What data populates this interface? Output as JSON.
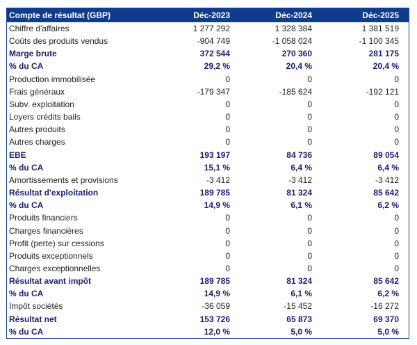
{
  "header": {
    "title": "Compte de résultat (GBP)",
    "columns": [
      "Déc-2023",
      "Déc-2024",
      "Déc-2025"
    ]
  },
  "rows": [
    {
      "label": "Chiffre d'affaires",
      "values": [
        "1 277 292",
        "1 328 384",
        "1 381 519"
      ],
      "bold": false
    },
    {
      "label": "Coûts des produits vendus",
      "values": [
        "-904 749",
        "-1 058 024",
        "-1 100 345"
      ],
      "bold": false
    },
    {
      "label": "Marge brute",
      "values": [
        "372 544",
        "270 360",
        "281 175"
      ],
      "bold": true
    },
    {
      "label": "% du CA",
      "values": [
        "29,2 %",
        "20,4 %",
        "20,4 %"
      ],
      "bold": true
    },
    {
      "label": "Production immobilisée",
      "values": [
        "0",
        "0",
        "0"
      ],
      "bold": false
    },
    {
      "label": "Frais généraux",
      "values": [
        "-179 347",
        "-185 624",
        "-192 121"
      ],
      "bold": false
    },
    {
      "label": "Subv. exploitation",
      "values": [
        "0",
        "0",
        "0"
      ],
      "bold": false
    },
    {
      "label": "Loyers crédits bails",
      "values": [
        "0",
        "0",
        "0"
      ],
      "bold": false
    },
    {
      "label": "Autres produits",
      "values": [
        "0",
        "0",
        "0"
      ],
      "bold": false
    },
    {
      "label": "Autres charges",
      "values": [
        "0",
        "0",
        "0"
      ],
      "bold": false
    },
    {
      "label": "EBE",
      "values": [
        "193 197",
        "84 736",
        "89 054"
      ],
      "bold": true
    },
    {
      "label": "% du CA",
      "values": [
        "15,1 %",
        "6,4 %",
        "6,4 %"
      ],
      "bold": true
    },
    {
      "label": "Amortissements et provisions",
      "values": [
        "-3 412",
        "-3 412",
        "-3 412"
      ],
      "bold": false
    },
    {
      "label": "Résultat d'exploitation",
      "values": [
        "189 785",
        "81 324",
        "85 642"
      ],
      "bold": true
    },
    {
      "label": "% du CA",
      "values": [
        "14,9 %",
        "6,1 %",
        "6,2 %"
      ],
      "bold": true
    },
    {
      "label": "Produits financiers",
      "values": [
        "0",
        "0",
        "0"
      ],
      "bold": false
    },
    {
      "label": "Charges financières",
      "values": [
        "0",
        "0",
        "0"
      ],
      "bold": false
    },
    {
      "label": "Profit (perte) sur cessions",
      "values": [
        "0",
        "0",
        "0"
      ],
      "bold": false
    },
    {
      "label": "Produits exceptionnels",
      "values": [
        "0",
        "0",
        "0"
      ],
      "bold": false
    },
    {
      "label": "Charges exceptionnelles",
      "values": [
        "0",
        "0",
        "0"
      ],
      "bold": false
    },
    {
      "label": "Résultat avant impôt",
      "values": [
        "189 785",
        "81 324",
        "85 642"
      ],
      "bold": true
    },
    {
      "label": "% du CA",
      "values": [
        "14,9 %",
        "6,1 %",
        "6,2 %"
      ],
      "bold": true
    },
    {
      "label": "Impôt sociétés",
      "values": [
        "-36 059",
        "-15 452",
        "-16 272"
      ],
      "bold": false
    },
    {
      "label": "Résultat net",
      "values": [
        "153 726",
        "65 873",
        "69 370"
      ],
      "bold": true
    },
    {
      "label": "% du CA",
      "values": [
        "12,0 %",
        "5,0 %",
        "5,0 %"
      ],
      "bold": true
    }
  ],
  "colors": {
    "header_bg": "#0f3d8c",
    "bold_text": "#1a1f6e"
  }
}
